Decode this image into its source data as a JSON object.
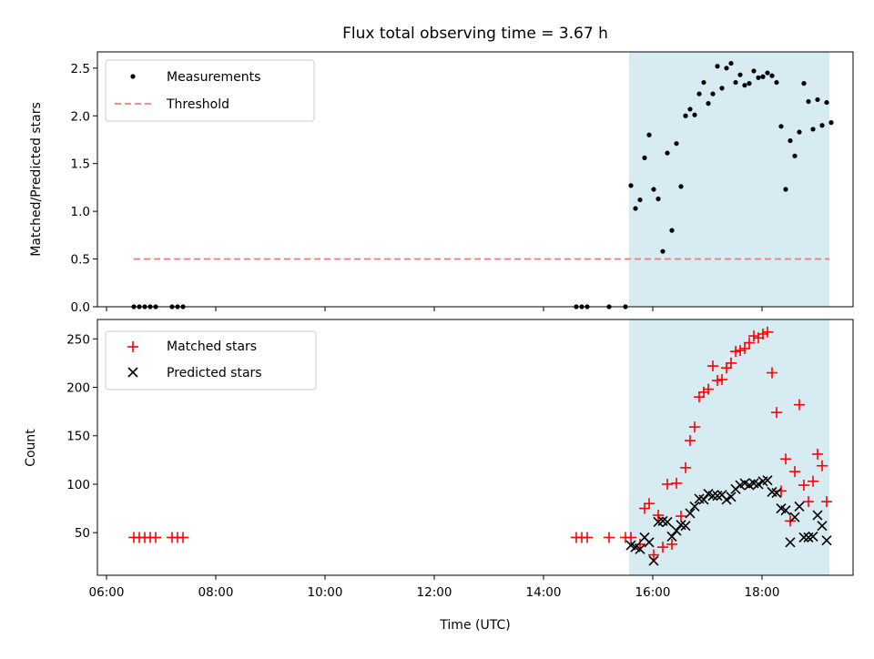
{
  "chart_data": {
    "title": "Flux total observing time = 3.67 h",
    "xlabel": "Time (UTC)",
    "x_unit": "hours UTC",
    "xlim": [
      "05:50",
      "19:40"
    ],
    "xticks": [
      "06:00",
      "08:00",
      "10:00",
      "12:00",
      "14:00",
      "16:00",
      "18:00"
    ],
    "shaded_interval": {
      "start": "15:34",
      "end": "19:14",
      "color": "#add8e6"
    },
    "panels": [
      {
        "type": "scatter",
        "ylabel": "Matched/Predicted stars",
        "ylim": [
          0,
          2.67
        ],
        "yticks": [
          "0.0",
          "0.5",
          "1.0",
          "1.5",
          "2.0",
          "2.5"
        ],
        "legend_position": "top-left",
        "threshold": {
          "name": "Threshold",
          "value": 0.5,
          "x_range": [
            "06:30",
            "19:14"
          ],
          "color": "#f08080",
          "style": "dashed"
        },
        "series": [
          {
            "name": "Measurements",
            "color": "#000000",
            "marker": "dot",
            "points": [
              [
                "06:30",
                0.0
              ],
              [
                "06:36",
                0.0
              ],
              [
                "06:42",
                0.0
              ],
              [
                "06:48",
                0.0
              ],
              [
                "06:54",
                0.0
              ],
              [
                "07:12",
                0.0
              ],
              [
                "07:18",
                0.0
              ],
              [
                "07:24",
                0.0
              ],
              [
                "14:36",
                0.0
              ],
              [
                "14:42",
                0.0
              ],
              [
                "14:48",
                0.0
              ],
              [
                "15:12",
                0.0
              ],
              [
                "15:30",
                0.0
              ],
              [
                "15:36",
                1.27
              ],
              [
                "15:41",
                1.03
              ],
              [
                "15:46",
                1.12
              ],
              [
                "15:51",
                1.56
              ],
              [
                "15:56",
                1.8
              ],
              [
                "16:01",
                1.23
              ],
              [
                "16:06",
                1.13
              ],
              [
                "16:11",
                0.58
              ],
              [
                "16:16",
                1.61
              ],
              [
                "16:21",
                0.8
              ],
              [
                "16:26",
                1.71
              ],
              [
                "16:31",
                1.26
              ],
              [
                "16:36",
                2.0
              ],
              [
                "16:41",
                2.07
              ],
              [
                "16:46",
                2.01
              ],
              [
                "16:51",
                2.23
              ],
              [
                "16:56",
                2.35
              ],
              [
                "17:01",
                2.13
              ],
              [
                "17:06",
                2.23
              ],
              [
                "17:11",
                2.52
              ],
              [
                "17:16",
                2.29
              ],
              [
                "17:21",
                2.5
              ],
              [
                "17:26",
                2.55
              ],
              [
                "17:31",
                2.35
              ],
              [
                "17:36",
                2.43
              ],
              [
                "17:41",
                2.32
              ],
              [
                "17:46",
                2.34
              ],
              [
                "17:51",
                2.47
              ],
              [
                "17:56",
                2.4
              ],
              [
                "18:01",
                2.41
              ],
              [
                "18:06",
                2.45
              ],
              [
                "18:11",
                2.42
              ],
              [
                "18:16",
                2.35
              ],
              [
                "18:21",
                1.89
              ],
              [
                "18:26",
                1.23
              ],
              [
                "18:31",
                1.74
              ],
              [
                "18:36",
                1.58
              ],
              [
                "18:41",
                1.83
              ],
              [
                "18:46",
                2.34
              ],
              [
                "18:51",
                2.15
              ],
              [
                "18:56",
                1.86
              ],
              [
                "19:01",
                2.17
              ],
              [
                "19:06",
                1.9
              ],
              [
                "19:11",
                2.14
              ],
              [
                "19:16",
                1.93
              ]
            ]
          }
        ]
      },
      {
        "type": "scatter",
        "ylabel": "Count",
        "ylim": [
          6,
          270
        ],
        "yticks": [
          "50",
          "100",
          "150",
          "200",
          "250"
        ],
        "legend_position": "top-left",
        "series": [
          {
            "name": "Matched stars",
            "color": "#ff0000",
            "marker": "plus",
            "points": [
              [
                "06:30",
                45
              ],
              [
                "06:36",
                45
              ],
              [
                "06:42",
                45
              ],
              [
                "06:48",
                45
              ],
              [
                "06:54",
                45
              ],
              [
                "07:12",
                45
              ],
              [
                "07:18",
                45
              ],
              [
                "07:24",
                45
              ],
              [
                "14:36",
                45
              ],
              [
                "14:42",
                45
              ],
              [
                "14:48",
                45
              ],
              [
                "15:12",
                45
              ],
              [
                "15:30",
                45
              ],
              [
                "15:36",
                45
              ],
              [
                "15:46",
                38
              ],
              [
                "15:51",
                75
              ],
              [
                "15:56",
                80
              ],
              [
                "16:01",
                27
              ],
              [
                "16:06",
                68
              ],
              [
                "16:11",
                35
              ],
              [
                "16:16",
                100
              ],
              [
                "16:21",
                38
              ],
              [
                "16:26",
                101
              ],
              [
                "16:31",
                67
              ],
              [
                "16:36",
                117
              ],
              [
                "16:41",
                145
              ],
              [
                "16:46",
                159
              ],
              [
                "16:51",
                190
              ],
              [
                "16:56",
                195
              ],
              [
                "17:01",
                198
              ],
              [
                "17:06",
                222
              ],
              [
                "17:11",
                207
              ],
              [
                "17:16",
                208
              ],
              [
                "17:21",
                220
              ],
              [
                "17:26",
                225
              ],
              [
                "17:31",
                237
              ],
              [
                "17:36",
                238
              ],
              [
                "17:41",
                240
              ],
              [
                "17:46",
                246
              ],
              [
                "17:51",
                253
              ],
              [
                "17:56",
                251
              ],
              [
                "18:01",
                255
              ],
              [
                "18:06",
                257
              ],
              [
                "18:11",
                215
              ],
              [
                "18:16",
                174
              ],
              [
                "18:21",
                93
              ],
              [
                "18:26",
                126
              ],
              [
                "18:31",
                62
              ],
              [
                "18:36",
                113
              ],
              [
                "18:41",
                182
              ],
              [
                "18:46",
                99
              ],
              [
                "18:51",
                82
              ],
              [
                "18:56",
                103
              ],
              [
                "19:01",
                131
              ],
              [
                "19:06",
                119
              ],
              [
                "19:11",
                82
              ]
            ]
          },
          {
            "name": "Predicted stars",
            "color": "#000000",
            "marker": "x",
            "points": [
              [
                "15:36",
                37
              ],
              [
                "15:41",
                35
              ],
              [
                "15:46",
                33
              ],
              [
                "15:51",
                45
              ],
              [
                "15:56",
                40
              ],
              [
                "16:01",
                21
              ],
              [
                "16:06",
                61
              ],
              [
                "16:11",
                62
              ],
              [
                "16:16",
                61
              ],
              [
                "16:21",
                46
              ],
              [
                "16:26",
                52
              ],
              [
                "16:31",
                58
              ],
              [
                "16:36",
                57
              ],
              [
                "16:41",
                70
              ],
              [
                "16:46",
                77
              ],
              [
                "16:51",
                85
              ],
              [
                "16:56",
                84
              ],
              [
                "17:01",
                90
              ],
              [
                "17:06",
                88
              ],
              [
                "17:11",
                88
              ],
              [
                "17:16",
                89
              ],
              [
                "17:21",
                84
              ],
              [
                "17:26",
                87
              ],
              [
                "17:31",
                95
              ],
              [
                "17:36",
                99
              ],
              [
                "17:41",
                101
              ],
              [
                "17:46",
                99
              ],
              [
                "17:51",
                101
              ],
              [
                "17:56",
                100
              ],
              [
                "18:01",
                103
              ],
              [
                "18:06",
                104
              ],
              [
                "18:11",
                92
              ],
              [
                "18:16",
                91
              ],
              [
                "18:21",
                75
              ],
              [
                "18:26",
                73
              ],
              [
                "18:31",
                40
              ],
              [
                "18:36",
                66
              ],
              [
                "18:41",
                77
              ],
              [
                "18:46",
                45
              ],
              [
                "18:51",
                45
              ],
              [
                "18:56",
                46
              ],
              [
                "19:01",
                68
              ],
              [
                "19:06",
                57
              ],
              [
                "19:11",
                42
              ]
            ]
          }
        ]
      }
    ]
  }
}
